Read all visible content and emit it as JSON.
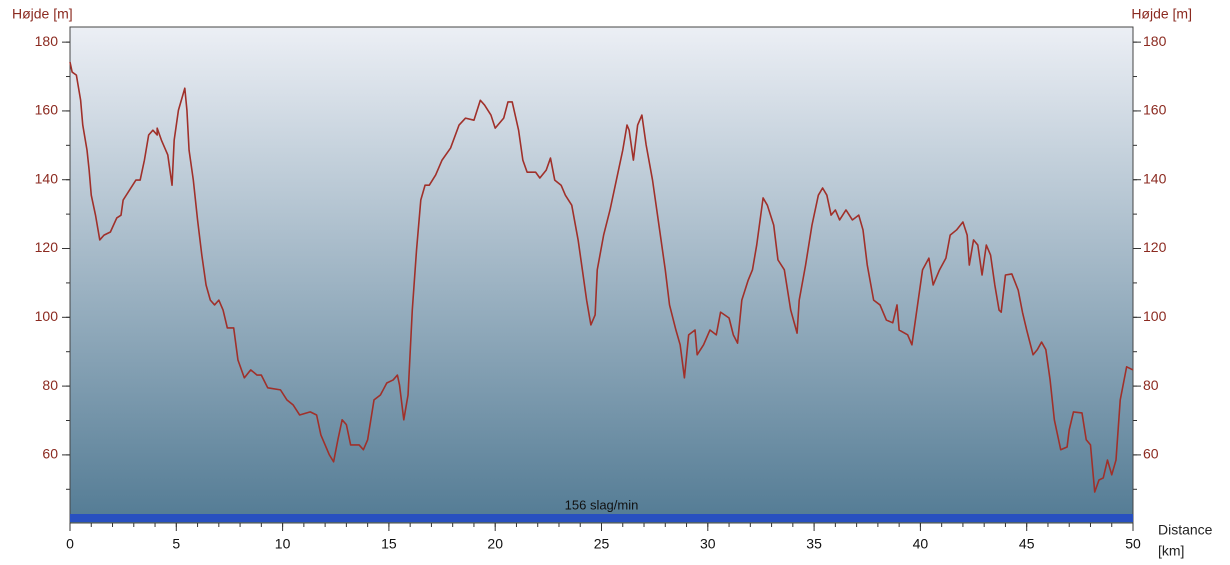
{
  "chart_data": {
    "type": "line",
    "ylabel": "Højde [m]",
    "y2label": "Højde [m]",
    "xlabel": [
      "Distance",
      "[km]"
    ],
    "x": [
      0,
      0.1,
      0.3,
      0.5,
      0.6,
      0.8,
      0.9,
      1.0,
      1.2,
      1.4,
      1.6,
      1.9,
      2.2,
      2.4,
      2.5,
      2.8,
      3.1,
      3.3,
      3.5,
      3.7,
      3.9,
      4.1,
      4.1,
      4.3,
      4.6,
      4.8,
      4.9,
      5.1,
      5.4,
      5.5,
      5.6,
      5.8,
      6.0,
      6.2,
      6.4,
      6.6,
      6.8,
      7.0,
      7.2,
      7.4,
      7.7,
      7.9,
      8.2,
      8.5,
      8.8,
      9.0,
      9.3,
      9.9,
      10.2,
      10.5,
      10.8,
      11.3,
      11.6,
      11.8,
      12.2,
      12.4,
      12.6,
      12.8,
      13.0,
      13.2,
      13.6,
      13.8,
      14.0,
      14.3,
      14.6,
      14.9,
      15.2,
      15.4,
      15.5,
      15.7,
      15.9,
      16.1,
      16.3,
      16.5,
      16.7,
      16.9,
      17.2,
      17.5,
      17.9,
      18.3,
      18.6,
      19.0,
      19.3,
      19.5,
      19.8,
      20.0,
      20.4,
      20.6,
      20.8,
      21.1,
      21.3,
      21.5,
      21.9,
      22.1,
      22.4,
      22.6,
      22.8,
      23.1,
      23.3,
      23.6,
      23.9,
      24.1,
      24.3,
      24.5,
      24.7,
      24.8,
      25.1,
      25.4,
      25.7,
      26.0,
      26.2,
      26.3,
      26.5,
      26.7,
      26.9,
      27.1,
      27.4,
      27.6,
      27.8,
      28.0,
      28.2,
      28.5,
      28.7,
      28.9,
      29.1,
      29.4,
      29.5,
      29.8,
      30.1,
      30.4,
      30.6,
      31.0,
      31.2,
      31.4,
      31.6,
      31.9,
      32.1,
      32.3,
      32.6,
      32.8,
      33.1,
      33.3,
      33.6,
      33.9,
      34.2,
      34.3,
      34.6,
      34.9,
      35.2,
      35.4,
      35.6,
      35.8,
      36.0,
      36.2,
      36.5,
      36.8,
      37.1,
      37.3,
      37.5,
      37.8,
      38.1,
      38.4,
      38.7,
      38.9,
      39.0,
      39.4,
      39.6,
      39.8,
      40.1,
      40.4,
      40.6,
      40.9,
      41.2,
      41.4,
      41.7,
      42.0,
      42.2,
      42.3,
      42.5,
      42.7,
      42.9,
      43.1,
      43.3,
      43.5,
      43.7,
      43.8,
      44.0,
      44.3,
      44.6,
      44.8,
      45.0,
      45.3,
      45.5,
      45.7,
      45.9,
      46.1,
      46.3,
      46.6,
      46.9,
      47.0,
      47.2,
      47.6,
      47.8,
      48.0,
      48.2,
      48.4,
      48.6,
      48.8,
      49.0,
      49.2,
      49.4,
      49.7,
      50.0
    ],
    "values": [
      174.2,
      171.3,
      170.4,
      163.1,
      155.9,
      148.6,
      142.8,
      135.5,
      129.7,
      122.5,
      123.9,
      124.8,
      128.9,
      129.7,
      134.1,
      137,
      139.9,
      139.9,
      145.7,
      153,
      154.4,
      153,
      155,
      151.5,
      147.2,
      138.4,
      151.5,
      160.2,
      166.6,
      160.2,
      148.6,
      139.9,
      128.3,
      118.1,
      109.4,
      105,
      103.6,
      105,
      102.1,
      96.9,
      96.9,
      87.6,
      82.4,
      84.7,
      83.2,
      83.2,
      79.5,
      78.9,
      76,
      74.5,
      71.6,
      72.5,
      71.6,
      65.8,
      60,
      58,
      64.4,
      70.2,
      68.8,
      62.9,
      62.9,
      61.5,
      64.4,
      76,
      77.4,
      80.9,
      81.8,
      83.2,
      80.3,
      70.2,
      77.4,
      102.1,
      119.6,
      134.1,
      138.4,
      138.4,
      141.4,
      145.7,
      149.2,
      155.9,
      157.9,
      157.3,
      163.1,
      161.7,
      158.8,
      155,
      157.9,
      162.6,
      162.6,
      154.4,
      145.7,
      142.2,
      142.2,
      140.5,
      142.8,
      146.3,
      139.9,
      138.4,
      135.5,
      132.6,
      122.5,
      113.8,
      105,
      97.8,
      100.7,
      113.8,
      123.9,
      131.2,
      139.9,
      148.6,
      155.9,
      154.4,
      145.7,
      155.9,
      158.8,
      150.1,
      139.9,
      131.2,
      122.5,
      113.8,
      103.6,
      96.3,
      92,
      82.4,
      94.9,
      96.3,
      89.1,
      92,
      96.3,
      94.9,
      101.5,
      99.8,
      94.9,
      92.5,
      105,
      110.8,
      113.8,
      121,
      134.7,
      132.6,
      126.8,
      116.7,
      113.8,
      102.1,
      95.4,
      105,
      115.2,
      126.8,
      135.5,
      137.6,
      135.5,
      129.7,
      131.2,
      128.3,
      131.2,
      128.3,
      129.7,
      125.4,
      115.2,
      105,
      103.6,
      99.2,
      98.4,
      103.6,
      96.3,
      94.9,
      92,
      100.7,
      113.8,
      117.2,
      109.4,
      113.8,
      117.2,
      123.9,
      125.4,
      127.7,
      123.9,
      115.2,
      122.5,
      121,
      112.3,
      121,
      118.1,
      109.4,
      102.1,
      101.5,
      112.3,
      112.6,
      107.9,
      101.5,
      96.3,
      89.1,
      90.6,
      92.8,
      90.6,
      81.8,
      70.2,
      61.5,
      62.3,
      67.3,
      72.5,
      72.2,
      64.4,
      62.9,
      49.2,
      52.7,
      53.3,
      58.5,
      54.2,
      58.5,
      76,
      85.6,
      84.7
    ],
    "color": "#a0302a",
    "xlim": [
      0,
      50
    ],
    "xticks": [
      0,
      5,
      10,
      15,
      20,
      25,
      30,
      35,
      40,
      45,
      50
    ],
    "xminor_step": 1,
    "ylim": [
      40.2,
      184.4
    ],
    "yticks": [
      60,
      80,
      100,
      120,
      140,
      160,
      180
    ],
    "yminor_step": 10,
    "y2lim": [
      40.2,
      184.4
    ],
    "y2ticks": [
      60,
      80,
      100,
      120,
      140,
      160,
      180
    ],
    "band": {
      "value": 156,
      "label": "156 slag/min",
      "color": "#2850c0"
    }
  }
}
